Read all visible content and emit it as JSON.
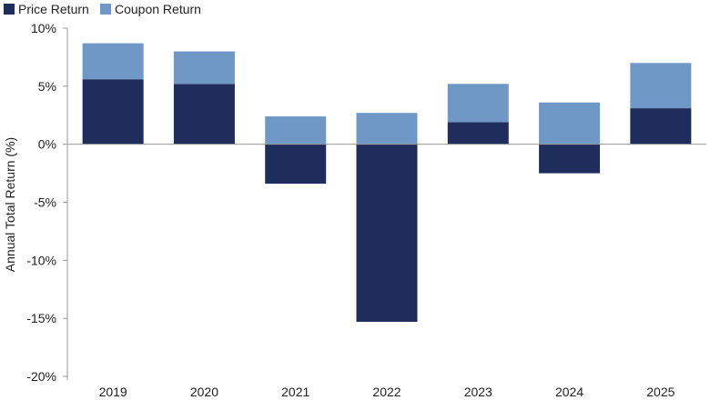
{
  "chart_data": {
    "type": "bar",
    "stacked": true,
    "title": "",
    "xlabel": "",
    "ylabel": "Annual Total Return (%)",
    "categories": [
      "2019",
      "2020",
      "2021",
      "2022",
      "2023",
      "2024",
      "2025"
    ],
    "series": [
      {
        "name": "Price Return",
        "color": "#1f2d5c",
        "values": [
          5.6,
          5.2,
          -3.4,
          -15.3,
          1.9,
          -2.5,
          3.1
        ]
      },
      {
        "name": "Coupon Return",
        "color": "#6f98c6",
        "values": [
          3.1,
          2.8,
          2.4,
          2.7,
          3.3,
          3.6,
          3.9
        ]
      }
    ],
    "ylim": [
      -20,
      10
    ],
    "yticks": [
      10,
      5,
      0,
      -5,
      -10,
      -15,
      -20
    ],
    "ytick_labels": [
      "10%",
      "5%",
      "0%",
      "-5%",
      "-10%",
      "-15%",
      "-20%"
    ],
    "grid": false,
    "legend_position": "top-left"
  }
}
